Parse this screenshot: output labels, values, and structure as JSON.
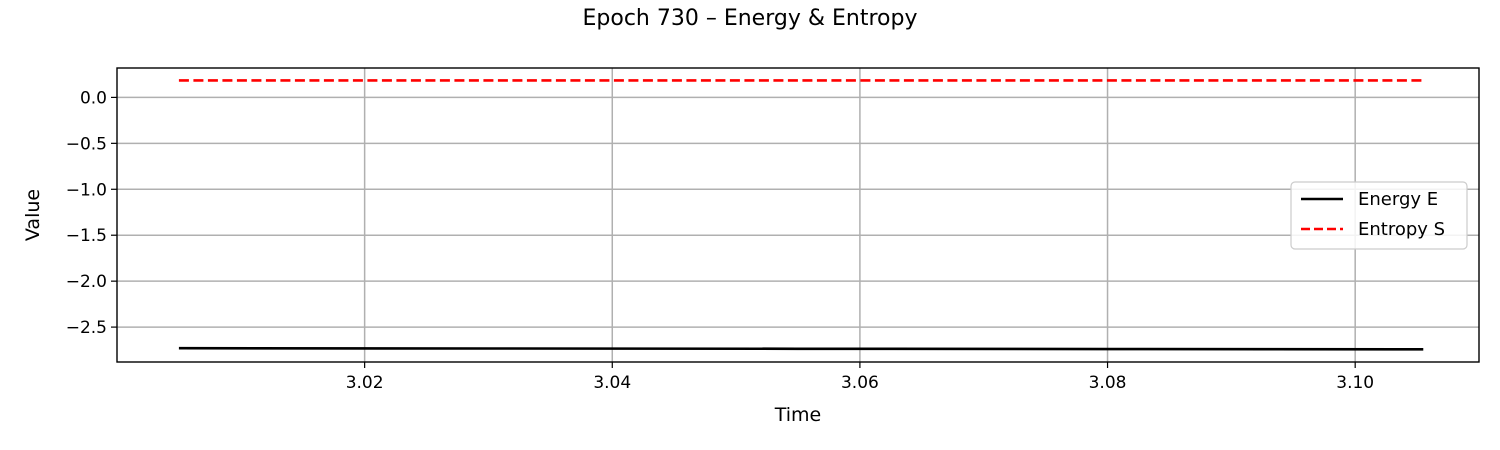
{
  "chart_data": {
    "type": "line",
    "title": "Epoch 730 – Energy & Entropy",
    "xlabel": "Time",
    "ylabel": "Value",
    "xlim": [
      3.0,
      3.11
    ],
    "ylim": [
      -2.88,
      0.32
    ],
    "xticks": [
      3.02,
      3.04,
      3.06,
      3.08,
      3.1
    ],
    "xtick_labels": [
      "3.02",
      "3.04",
      "3.06",
      "3.08",
      "3.10"
    ],
    "yticks": [
      0.0,
      -0.5,
      -1.0,
      -1.5,
      -2.0,
      -2.5
    ],
    "ytick_labels": [
      "0.0",
      "−0.5",
      "−1.0",
      "−1.5",
      "−2.0",
      "−2.5"
    ],
    "grid": true,
    "legend_position": "center-right",
    "series": [
      {
        "name": "Energy E",
        "color": "#000000",
        "style": "solid",
        "x": [
          3.005,
          3.03,
          3.055,
          3.08,
          3.1055
        ],
        "y": [
          -2.73,
          -2.733,
          -2.736,
          -2.739,
          -2.742
        ]
      },
      {
        "name": "Entropy S",
        "color": "#ff0000",
        "style": "dashed",
        "x": [
          3.005,
          3.03,
          3.055,
          3.08,
          3.1055
        ],
        "y": [
          0.185,
          0.185,
          0.185,
          0.185,
          0.185
        ]
      }
    ]
  }
}
